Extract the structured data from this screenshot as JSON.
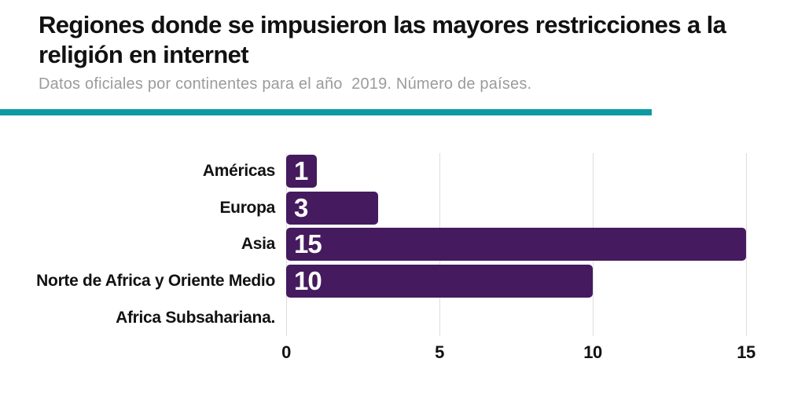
{
  "header": {
    "title_line1": "Regiones donde se impusieron las mayores restricciones a la",
    "title_line2": "religión en internet",
    "subtitle": "Datos oficiales por continentes para el año  2019. Número de países."
  },
  "colors": {
    "bar": "#451A5E",
    "accent_rule": "#0C9AA2",
    "subtitle_text": "#9B9B9B",
    "gridline": "#DDDDDD",
    "title_text": "#111111",
    "value_label": "#FFFFFF"
  },
  "chart_data": {
    "type": "bar",
    "orientation": "horizontal",
    "title": "Regiones donde se impusieron las mayores restricciones a la religión en internet",
    "subtitle": "Datos oficiales por continentes para el año  2019. Número de países.",
    "categories": [
      "Américas",
      "Europa",
      "Asia",
      "Norte de Africa y Oriente Medio",
      "Africa Subsahariana."
    ],
    "values": [
      1,
      3,
      15,
      10,
      0
    ],
    "x_ticks": [
      0,
      5,
      10,
      15
    ],
    "xlim": [
      0,
      15
    ],
    "grid": true,
    "legend": "none",
    "value_labels": "inside-left"
  }
}
